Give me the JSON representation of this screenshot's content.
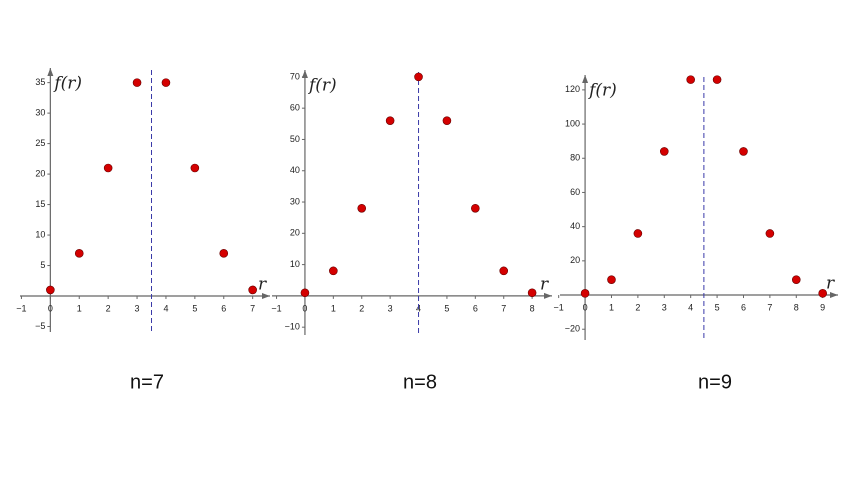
{
  "chart_data": [
    {
      "type": "scatter",
      "title": "n=7",
      "x_label": "r",
      "y_label": "f(r)",
      "x": [
        0,
        1,
        2,
        3,
        4,
        5,
        6,
        7
      ],
      "values": [
        1,
        7,
        21,
        35,
        35,
        21,
        7,
        1
      ],
      "color": "#d40000",
      "symmetry_x": 3.5,
      "symmetry_color": "#3a3aa8",
      "xlim": [
        -1.05,
        7.6
      ],
      "ylim": [
        -5.9,
        37.4
      ],
      "xticks": [
        {
          "value": -1,
          "label": "−1"
        },
        0,
        1,
        2,
        3,
        4,
        5,
        6,
        7
      ],
      "yticks": [
        {
          "value": -5,
          "label": "−5"
        },
        5,
        10,
        15,
        20,
        25,
        30,
        35
      ]
    },
    {
      "type": "scatter",
      "title": "n=8",
      "x_label": "r",
      "y_label": "f(r)",
      "x": [
        0,
        1,
        2,
        3,
        4,
        5,
        6,
        7,
        8
      ],
      "values": [
        1,
        8,
        28,
        56,
        70,
        56,
        28,
        8,
        1
      ],
      "color": "#d40000",
      "symmetry_x": 4,
      "symmetry_color": "#3a3aa8",
      "xlim": [
        -1.16,
        8.7
      ],
      "ylim": [
        -12.5,
        72.2
      ],
      "xticks": [
        {
          "value": -1,
          "label": "−1"
        },
        0,
        1,
        2,
        3,
        4,
        5,
        6,
        7,
        8
      ],
      "yticks": [
        {
          "value": -10,
          "label": "−10"
        },
        10,
        20,
        30,
        40,
        50,
        60,
        70
      ]
    },
    {
      "type": "scatter",
      "title": "n=9",
      "x_label": "r",
      "y_label": "f(r)",
      "x": [
        0,
        1,
        2,
        3,
        4,
        5,
        6,
        7,
        8,
        9
      ],
      "values": [
        1,
        9,
        36,
        84,
        126,
        126,
        84,
        36,
        9,
        1
      ],
      "color": "#d40000",
      "symmetry_x": 4.5,
      "symmetry_color": "#3a3aa8",
      "xlim": [
        -0.95,
        9.58
      ],
      "ylim": [
        -26.3,
        128.7
      ],
      "xticks": [
        {
          "value": -1,
          "label": "−1"
        },
        0,
        1,
        2,
        3,
        4,
        5,
        6,
        7,
        8,
        9
      ],
      "yticks": [
        {
          "value": -20,
          "label": "−20"
        },
        20,
        40,
        60,
        80,
        100,
        120
      ]
    }
  ]
}
